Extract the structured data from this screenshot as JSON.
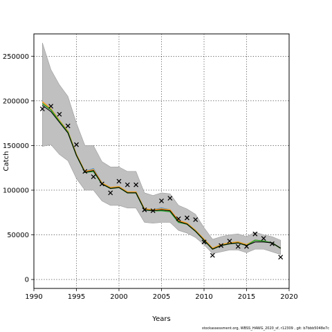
{
  "chart_data": {
    "type": "line",
    "title": "",
    "xlabel": "Years",
    "ylabel": "Catch",
    "xlim": [
      1990,
      2020
    ],
    "ylim": [
      -10000,
      275000
    ],
    "xticks": [
      1990,
      1995,
      2000,
      2005,
      2010,
      2015,
      2020
    ],
    "yticks": [
      0,
      50000,
      100000,
      150000,
      200000,
      250000
    ],
    "grid": true,
    "colors": {
      "band": "#c0c0c0",
      "green": "#2ca02c",
      "orange": "#ff9f1a",
      "blue": "#3f8fd8",
      "black": "#000000"
    },
    "x": [
      1991,
      1992,
      1993,
      1994,
      1995,
      1996,
      1997,
      1998,
      1999,
      2000,
      2001,
      2002,
      2003,
      2004,
      2005,
      2006,
      2007,
      2008,
      2009,
      2010,
      2011,
      2012,
      2013,
      2014,
      2015,
      2016,
      2017,
      2018,
      2019
    ],
    "observed": [
      191000,
      194000,
      185000,
      172000,
      151000,
      121000,
      115000,
      107000,
      97000,
      110000,
      106000,
      106000,
      78000,
      77000,
      88000,
      91000,
      68000,
      69000,
      67000,
      42000,
      27000,
      38000,
      43000,
      37000,
      37000,
      51000,
      46000,
      40000,
      25000
    ],
    "band_upper": [
      265000,
      235000,
      218000,
      205000,
      175000,
      150000,
      150000,
      132000,
      126000,
      126000,
      121000,
      121000,
      97000,
      94000,
      97000,
      96000,
      83000,
      79000,
      73000,
      58000,
      45000,
      48000,
      50000,
      51000,
      48000,
      53000,
      50000,
      48000,
      44000
    ],
    "band_lower": [
      149000,
      151000,
      140000,
      133000,
      113000,
      100000,
      100000,
      88000,
      83000,
      83000,
      80000,
      80000,
      64000,
      63000,
      64000,
      64000,
      55000,
      52000,
      47000,
      39000,
      29000,
      31000,
      33000,
      33000,
      30000,
      34000,
      34000,
      31000,
      28000
    ],
    "series": [
      {
        "values": [
          199000,
          191000,
          178000,
          166000,
          140000,
          121000,
          124000,
          108000,
          103000,
          104000,
          98000,
          98000,
          79000,
          78000,
          80000,
          78000,
          66000,
          63000,
          55000,
          45000,
          35000,
          39000,
          41000,
          42000,
          39000,
          44000,
          43000,
          41000,
          35000
        ]
      },
      {
        "values": [
          199000,
          191000,
          178000,
          166000,
          140000,
          121000,
          123000,
          108000,
          103000,
          104000,
          98000,
          98000,
          79000,
          78000,
          79000,
          78000,
          66000,
          63000,
          55000,
          45000,
          35000,
          39000,
          41000,
          42000,
          39000,
          44000,
          43000,
          41000,
          35000
        ]
      },
      {
        "values": [
          197000,
          190000,
          177000,
          165000,
          139000,
          120000,
          121000,
          107000,
          102000,
          103000,
          97000,
          97000,
          78000,
          77000,
          77000,
          76000,
          64000,
          62000,
          54000,
          44000,
          34000,
          38000,
          40000,
          41000,
          38000,
          44000,
          43000,
          41000,
          35000
        ]
      }
    ],
    "black_line": {
      "x": [
        1991,
        1992,
        1993,
        1994,
        1995,
        1996,
        1997,
        1998,
        1999,
        2000,
        2001,
        2002,
        2003,
        2004,
        2005,
        2006,
        2007,
        2008,
        2009,
        2010,
        2011,
        2012,
        2013,
        2014,
        2015,
        2016,
        2017,
        2018,
        2019
      ],
      "values": [
        195000,
        188000,
        176000,
        164000,
        139000,
        120000,
        122000,
        107000,
        102000,
        103000,
        97000,
        97000,
        78000,
        77000,
        78000,
        77000,
        65000,
        62000,
        54000,
        44000,
        34000,
        38000,
        40000,
        41000,
        38000,
        42000,
        42000,
        41000,
        35000
      ]
    }
  },
  "footer": {
    "text": "stockassessment.org, WBSS_HAWG_2020_sf, r12309 , git: b7bbb5048e7c"
  }
}
